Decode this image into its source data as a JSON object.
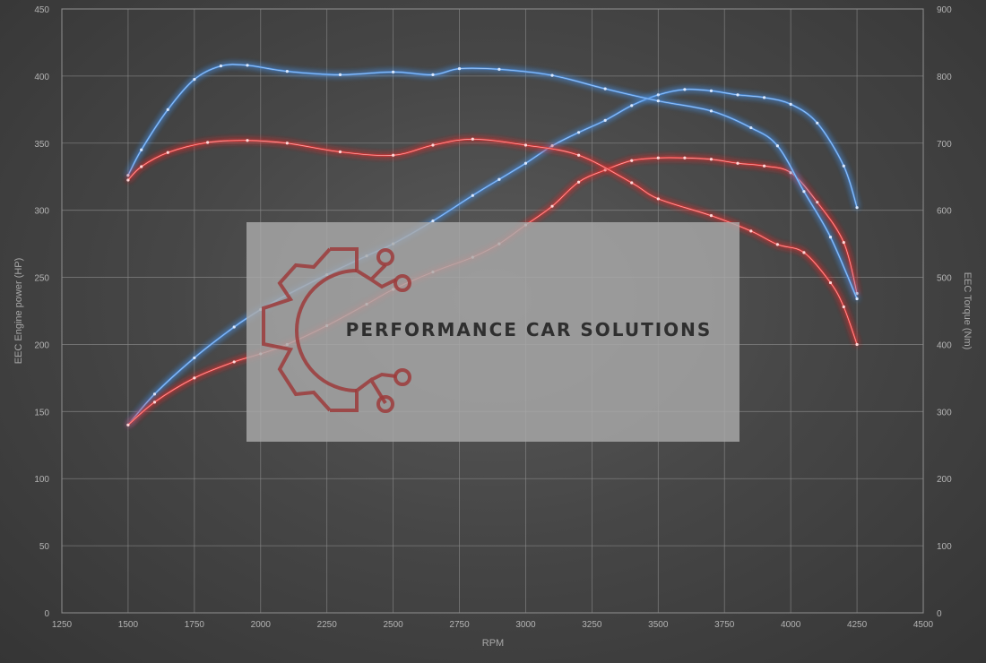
{
  "chart_data": {
    "type": "line",
    "title": "",
    "xlabel": "RPM",
    "ylabel_left": "EEC Engine power (HP)",
    "ylabel_right": "EEC Torque (Nm)",
    "xlim": [
      1250,
      4500
    ],
    "ylim_left": [
      0,
      450
    ],
    "ylim_right": [
      0,
      900
    ],
    "x_ticks": [
      1250,
      1500,
      1750,
      2000,
      2250,
      2500,
      2750,
      3000,
      3250,
      3500,
      3750,
      4000,
      4250,
      4500
    ],
    "y_ticks_left": [
      0,
      50,
      100,
      150,
      200,
      250,
      300,
      350,
      400,
      450
    ],
    "y_ticks_right": [
      0,
      100,
      200,
      300,
      400,
      500,
      600,
      700,
      800,
      900
    ],
    "grid": true,
    "series": [
      {
        "color": "#4a90e2",
        "axis": "left",
        "points": [
          [
            1500,
            140
          ],
          [
            1600,
            163
          ],
          [
            1750,
            190
          ],
          [
            1900,
            213
          ],
          [
            2000,
            226
          ],
          [
            2100,
            237
          ],
          [
            2250,
            252
          ],
          [
            2400,
            266
          ],
          [
            2500,
            275
          ],
          [
            2650,
            292
          ],
          [
            2800,
            311
          ],
          [
            2900,
            323
          ],
          [
            3000,
            335
          ],
          [
            3100,
            348
          ],
          [
            3200,
            358
          ],
          [
            3300,
            367
          ],
          [
            3400,
            378
          ],
          [
            3500,
            386
          ],
          [
            3600,
            390
          ],
          [
            3700,
            389
          ],
          [
            3800,
            386
          ],
          [
            3900,
            384
          ],
          [
            4000,
            379
          ],
          [
            4100,
            365
          ],
          [
            4200,
            333
          ],
          [
            4250,
            302
          ]
        ]
      },
      {
        "color": "#e03030",
        "axis": "left",
        "points": [
          [
            1500,
            140
          ],
          [
            1600,
            157
          ],
          [
            1750,
            175
          ],
          [
            1900,
            187
          ],
          [
            2000,
            193
          ],
          [
            2100,
            200
          ],
          [
            2250,
            214
          ],
          [
            2400,
            230
          ],
          [
            2500,
            241
          ],
          [
            2650,
            254
          ],
          [
            2800,
            265
          ],
          [
            2900,
            275
          ],
          [
            3000,
            289
          ],
          [
            3100,
            303
          ],
          [
            3200,
            321
          ],
          [
            3300,
            330
          ],
          [
            3400,
            337
          ],
          [
            3500,
            339
          ],
          [
            3600,
            339
          ],
          [
            3700,
            338
          ],
          [
            3800,
            335
          ],
          [
            3900,
            333
          ],
          [
            4000,
            328
          ],
          [
            4100,
            306
          ],
          [
            4200,
            276
          ],
          [
            4250,
            238
          ]
        ]
      },
      {
        "color": "#4a90e2",
        "axis": "right",
        "points": [
          [
            1500,
            652
          ],
          [
            1550,
            690
          ],
          [
            1650,
            750
          ],
          [
            1750,
            795
          ],
          [
            1850,
            815
          ],
          [
            1950,
            816
          ],
          [
            2100,
            807
          ],
          [
            2300,
            802
          ],
          [
            2500,
            806
          ],
          [
            2650,
            802
          ],
          [
            2750,
            811
          ],
          [
            2900,
            810
          ],
          [
            3100,
            801
          ],
          [
            3300,
            781
          ],
          [
            3500,
            763
          ],
          [
            3700,
            748
          ],
          [
            3850,
            723
          ],
          [
            3950,
            696
          ],
          [
            4050,
            628
          ],
          [
            4150,
            560
          ],
          [
            4250,
            468
          ]
        ]
      },
      {
        "color": "#e03030",
        "axis": "right",
        "points": [
          [
            1500,
            645
          ],
          [
            1550,
            665
          ],
          [
            1650,
            686
          ],
          [
            1800,
            701
          ],
          [
            1950,
            704
          ],
          [
            2100,
            700
          ],
          [
            2300,
            687
          ],
          [
            2500,
            682
          ],
          [
            2650,
            697
          ],
          [
            2800,
            706
          ],
          [
            3000,
            697
          ],
          [
            3200,
            682
          ],
          [
            3400,
            641
          ],
          [
            3500,
            617
          ],
          [
            3700,
            592
          ],
          [
            3850,
            569
          ],
          [
            3950,
            549
          ],
          [
            4050,
            537
          ],
          [
            4150,
            492
          ],
          [
            4200,
            456
          ],
          [
            4250,
            400
          ]
        ]
      }
    ],
    "watermark": {
      "text": "PERFORMANCE CAR SOLUTIONS",
      "logo": "gear-circuit-logo"
    }
  }
}
